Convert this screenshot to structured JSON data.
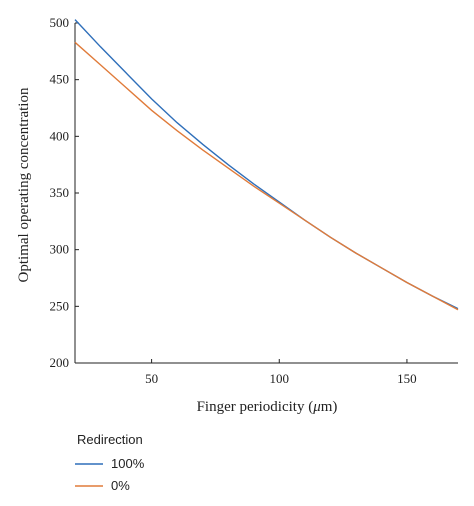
{
  "chart_data": {
    "type": "line",
    "title": "",
    "xlabel_prefix": "Finger periodicity (",
    "xlabel_unit_symbol": "μ",
    "xlabel_suffix": "m)",
    "ylabel": "Optimal operating concentration",
    "xlim": [
      20,
      170
    ],
    "ylim": [
      200,
      500
    ],
    "x_ticks": [
      50,
      100,
      150
    ],
    "y_ticks": [
      200,
      250,
      300,
      350,
      400,
      450,
      500
    ],
    "grid": false,
    "legend": {
      "title": "Redirection",
      "placement": "bottom-left"
    },
    "series": [
      {
        "name": "100%",
        "color": "#2f6fba",
        "x": [
          20,
          30,
          40,
          50,
          60,
          70,
          80,
          90,
          100,
          110,
          120,
          130,
          140,
          150,
          160,
          170
        ],
        "y": [
          503,
          479,
          456,
          433,
          412,
          393,
          375,
          358,
          342,
          326,
          311,
          297,
          284,
          271,
          259,
          248
        ]
      },
      {
        "name": "0%",
        "color": "#e07b3a",
        "x": [
          20,
          30,
          40,
          50,
          60,
          70,
          80,
          90,
          100,
          110,
          120,
          130,
          140,
          150,
          160,
          170
        ],
        "y": [
          483,
          463,
          443,
          423,
          405,
          388,
          372,
          356,
          341,
          326,
          311,
          297,
          284,
          271,
          259,
          247
        ]
      }
    ]
  }
}
